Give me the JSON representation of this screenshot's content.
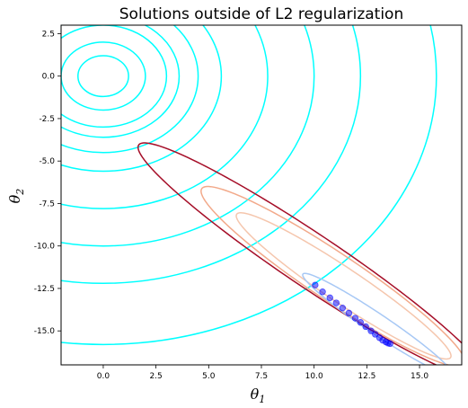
{
  "chart_data": {
    "type": "contour",
    "title": "Solutions outside of L2 regularization",
    "xlabel": {
      "symbol": "θ",
      "subscript": "1"
    },
    "ylabel": {
      "symbol": "θ",
      "subscript": "2"
    },
    "xlim": [
      -2,
      17
    ],
    "ylim": [
      -17,
      3
    ],
    "xticks": [
      0.0,
      2.5,
      5.0,
      7.5,
      10.0,
      12.5,
      15.0
    ],
    "xtick_labels": [
      "0.0",
      "2.5",
      "5.0",
      "7.5",
      "10.0",
      "12.5",
      "15.0"
    ],
    "yticks": [
      2.5,
      0.0,
      -2.5,
      -5.0,
      -7.5,
      -10.0,
      -12.5,
      -15.0
    ],
    "ytick_labels": [
      "2.5",
      "0.0",
      "-2.5",
      "-5.0",
      "-7.5",
      "-10.0",
      "-12.5",
      "-15.0"
    ],
    "grid": false,
    "colors": {
      "l2_contours": "#00ffff",
      "loss_outer": "#a50d27",
      "loss_mid": "#f2a98a",
      "loss_inner": "#f5c6ad",
      "loss_center": "#a7c8f5",
      "solution_points": "#0000ff"
    },
    "l2_contours": {
      "center": [
        0,
        0
      ],
      "radii": [
        1.2,
        2.0,
        3.0,
        3.6,
        4.5,
        5.6,
        7.8,
        10.0,
        12.2,
        15.8
      ]
    },
    "loss_contours": [
      {
        "level": "outer",
        "center": [
          9.9,
          -10.9
        ],
        "semi_axes": [
          10.7,
          1.45
        ],
        "angle_deg": -40
      },
      {
        "level": "mid",
        "center": [
          10.9,
          -11.8
        ],
        "semi_axes": [
          8.1,
          1.3
        ],
        "angle_deg": -40
      },
      {
        "level": "inner",
        "center": [
          11.4,
          -12.35
        ],
        "semi_axes": [
          6.6,
          0.95
        ],
        "angle_deg": -40
      },
      {
        "level": "center",
        "center": [
          13.0,
          -14.6
        ],
        "semi_axes": [
          4.6,
          0.55
        ],
        "angle_deg": -40
      }
    ],
    "solution_points": {
      "x": [
        10.05,
        10.4,
        10.75,
        11.05,
        11.35,
        11.65,
        11.95,
        12.2,
        12.45,
        12.7,
        12.9,
        13.1,
        13.25,
        13.4,
        13.5,
        13.6
      ],
      "y": [
        -12.3,
        -12.7,
        -13.05,
        -13.35,
        -13.65,
        -13.95,
        -14.25,
        -14.5,
        -14.75,
        -15.0,
        -15.2,
        -15.4,
        -15.55,
        -15.65,
        -15.72,
        -15.75
      ]
    }
  }
}
